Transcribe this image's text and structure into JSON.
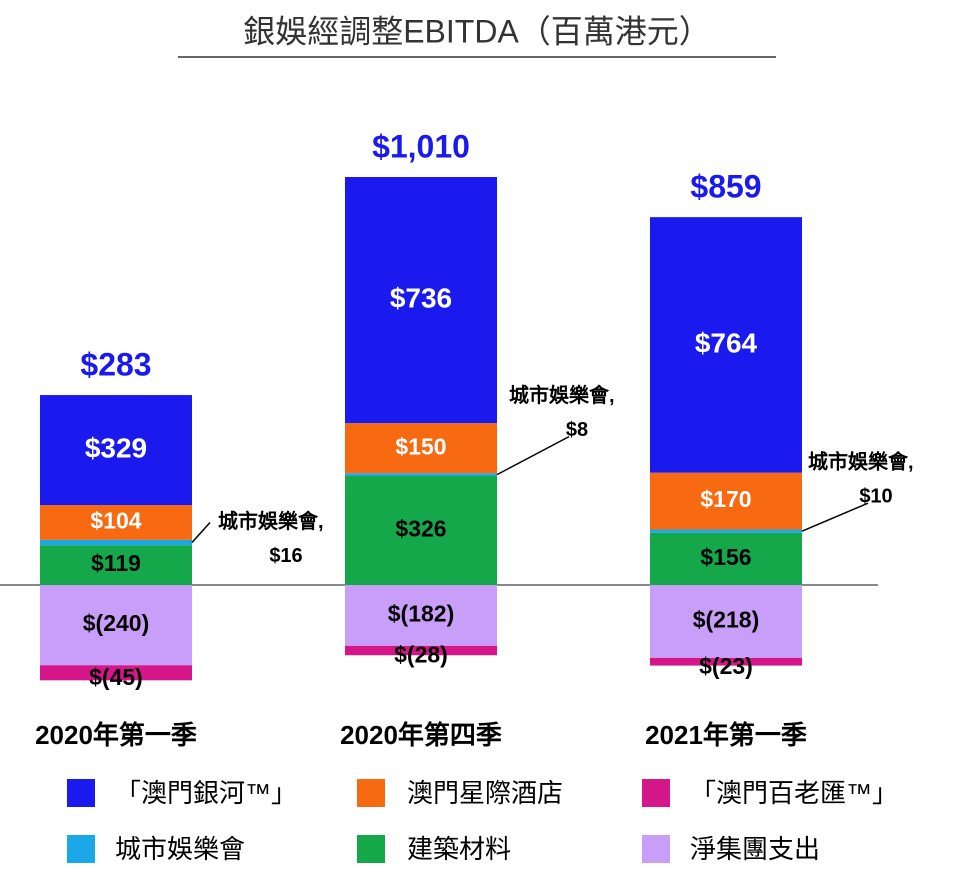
{
  "chart_data": {
    "type": "stacked_bar",
    "title": "銀娛經調整EBITDA（百萬港元）",
    "categories": [
      "2020年第一季",
      "2020年第四季",
      "2021年第一季"
    ],
    "series": [
      {
        "name": "「澳門銀河™」",
        "color": "#1a1aee",
        "values": [
          329,
          736,
          764
        ],
        "value_labels": [
          "$329",
          "$736",
          "$764"
        ]
      },
      {
        "name": "澳門星際酒店",
        "color": "#f86a12",
        "values": [
          104,
          150,
          170
        ],
        "value_labels": [
          "$104",
          "$150",
          "$170"
        ]
      },
      {
        "name": "「澳門百老匯™」",
        "color": "#d4168a",
        "values": [
          -45,
          -28,
          -23
        ],
        "value_labels": [
          "$(45)",
          "$(28)",
          "$(23)"
        ]
      },
      {
        "name": "城市娛樂會",
        "color": "#1aa8e6",
        "values": [
          16,
          8,
          10
        ],
        "value_labels": [
          "$16",
          "$8",
          "$10"
        ],
        "annotation": "城市娛樂會,"
      },
      {
        "name": "建築材料",
        "color": "#14a84a",
        "values": [
          119,
          326,
          156
        ],
        "value_labels": [
          "$119",
          "$326",
          "$156"
        ]
      },
      {
        "name": "淨集團支出",
        "color": "#c89ef8",
        "values": [
          -240,
          -182,
          -218
        ],
        "value_labels": [
          "$(240)",
          "$(182)",
          "$(218)"
        ]
      }
    ],
    "totals": [
      283,
      1010,
      859
    ],
    "total_labels": [
      "$283",
      "$1,010",
      "$859"
    ],
    "total_color": "#1a1aee",
    "stack_order": [
      "建築材料",
      "城市娛樂會",
      "澳門星際酒店",
      "「澳門銀河™」",
      "淨集團支出",
      "「澳門百老匯™」"
    ]
  }
}
